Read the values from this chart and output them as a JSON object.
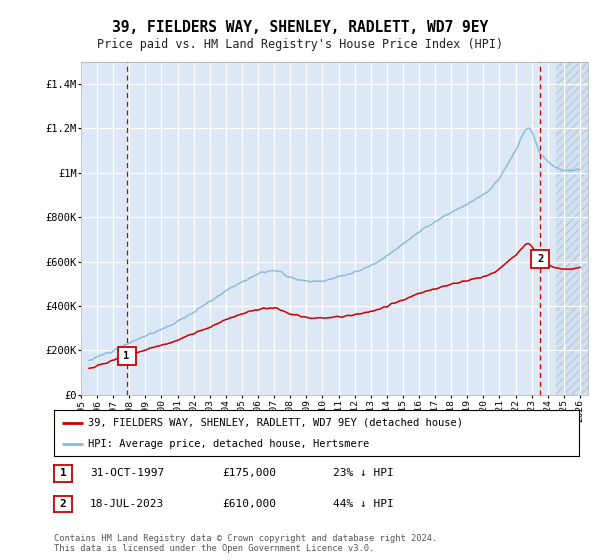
{
  "title": "39, FIELDERS WAY, SHENLEY, RADLETT, WD7 9EY",
  "subtitle": "Price paid vs. HM Land Registry's House Price Index (HPI)",
  "plot_bg_color": "#dce8f5",
  "ylim": [
    0,
    1500000
  ],
  "yticks": [
    0,
    200000,
    400000,
    600000,
    800000,
    1000000,
    1200000,
    1400000
  ],
  "ytick_labels": [
    "£0",
    "£200K",
    "£400K",
    "£600K",
    "£800K",
    "£1M",
    "£1.2M",
    "£1.4M"
  ],
  "xlim_start": 1995.4,
  "xlim_end": 2026.5,
  "xticks": [
    1995,
    1996,
    1997,
    1998,
    1999,
    2000,
    2001,
    2002,
    2003,
    2004,
    2005,
    2006,
    2007,
    2008,
    2009,
    2010,
    2011,
    2012,
    2013,
    2014,
    2015,
    2016,
    2017,
    2018,
    2019,
    2020,
    2021,
    2022,
    2023,
    2024,
    2025,
    2026
  ],
  "sale1_x": 1997.833,
  "sale1_y": 175000,
  "sale1_label": "1",
  "sale2_x": 2023.542,
  "sale2_y": 610000,
  "sale2_label": "2",
  "legend_line1": "39, FIELDERS WAY, SHENLEY, RADLETT, WD7 9EY (detached house)",
  "legend_line2": "HPI: Average price, detached house, Hertsmere",
  "footer": "Contains HM Land Registry data © Crown copyright and database right 2024.\nThis data is licensed under the Open Government Licence v3.0.",
  "red_color": "#cc0000",
  "hpi_color": "#88bbdd",
  "hatch_start": 2024.5
}
